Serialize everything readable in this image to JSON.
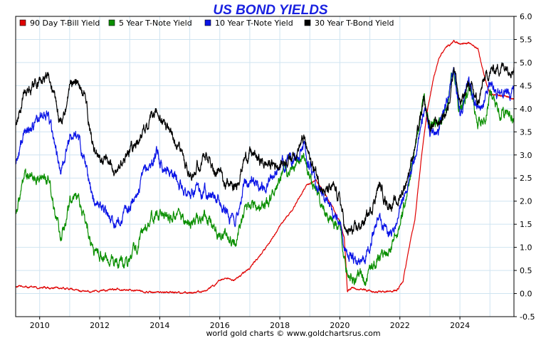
{
  "chart_data": {
    "type": "line",
    "title": "US BOND YIELDS",
    "footer": "world gold charts © www.goldchartsrus.com",
    "xlabel": "",
    "ylabel": "",
    "xlim": [
      2009.2,
      2025.8
    ],
    "ylim": [
      -0.5,
      6.0
    ],
    "x_ticks": [
      2010,
      2012,
      2014,
      2016,
      2018,
      2020,
      2022,
      2024
    ],
    "y_ticks": [
      -0.5,
      0.0,
      0.5,
      1.0,
      1.5,
      2.0,
      2.5,
      3.0,
      3.5,
      4.0,
      4.5,
      5.0,
      5.5,
      6.0
    ],
    "grid": true,
    "legend_position": "top-left",
    "series": [
      {
        "name": "90 Day T-Bill Yield",
        "color": "#e00000",
        "x": [
          2009.2,
          2009.5,
          2010.0,
          2010.5,
          2011.0,
          2011.5,
          2012.0,
          2012.5,
          2013.0,
          2013.5,
          2014.0,
          2014.5,
          2015.0,
          2015.5,
          2015.9,
          2016.0,
          2016.5,
          2017.0,
          2017.5,
          2018.0,
          2018.5,
          2018.9,
          2019.2,
          2019.5,
          2019.8,
          2020.0,
          2020.15,
          2020.25,
          2020.4,
          2020.8,
          2021.0,
          2021.5,
          2021.9,
          2022.1,
          2022.3,
          2022.5,
          2022.7,
          2022.9,
          2023.1,
          2023.3,
          2023.5,
          2023.8,
          2024.0,
          2024.3,
          2024.6,
          2024.8,
          2025.0,
          2025.3,
          2025.6,
          2025.8
        ],
        "values": [
          0.15,
          0.15,
          0.12,
          0.12,
          0.1,
          0.04,
          0.06,
          0.09,
          0.08,
          0.04,
          0.03,
          0.03,
          0.02,
          0.05,
          0.22,
          0.3,
          0.3,
          0.55,
          0.95,
          1.45,
          1.9,
          2.35,
          2.45,
          2.2,
          1.8,
          1.55,
          1.2,
          0.05,
          0.12,
          0.09,
          0.05,
          0.05,
          0.06,
          0.25,
          0.95,
          1.6,
          2.85,
          3.9,
          4.6,
          5.1,
          5.3,
          5.45,
          5.4,
          5.45,
          5.3,
          4.75,
          4.3,
          4.3,
          4.25,
          4.2
        ]
      },
      {
        "name": "5 Year T-Note Yield",
        "color": "#0a8f00",
        "x": [
          2009.2,
          2009.5,
          2010.0,
          2010.3,
          2010.7,
          2011.0,
          2011.2,
          2011.5,
          2011.8,
          2012.0,
          2012.5,
          2013.0,
          2013.5,
          2013.8,
          2014.0,
          2014.5,
          2015.0,
          2015.5,
          2016.0,
          2016.5,
          2016.8,
          2017.0,
          2017.5,
          2018.0,
          2018.5,
          2018.8,
          2019.0,
          2019.5,
          2019.8,
          2020.0,
          2020.2,
          2020.5,
          2020.8,
          2021.0,
          2021.3,
          2021.6,
          2021.9,
          2022.2,
          2022.5,
          2022.8,
          2023.0,
          2023.3,
          2023.6,
          2023.8,
          2024.0,
          2024.3,
          2024.6,
          2024.8,
          2025.0,
          2025.3,
          2025.6,
          2025.8
        ],
        "values": [
          1.8,
          2.5,
          2.5,
          2.55,
          1.2,
          2.0,
          2.2,
          1.6,
          0.95,
          0.85,
          0.65,
          0.75,
          1.4,
          1.65,
          1.7,
          1.65,
          1.55,
          1.65,
          1.35,
          1.05,
          1.75,
          1.95,
          1.85,
          2.45,
          2.75,
          2.95,
          2.55,
          1.75,
          1.6,
          1.4,
          0.5,
          0.3,
          0.35,
          0.45,
          0.8,
          0.8,
          1.25,
          2.0,
          3.2,
          4.2,
          3.6,
          3.8,
          4.1,
          4.85,
          3.9,
          4.45,
          3.7,
          3.8,
          4.3,
          3.95,
          3.9,
          3.8
        ]
      },
      {
        "name": "10 Year T-Note Yield",
        "color": "#0a14e6",
        "x": [
          2009.2,
          2009.5,
          2010.0,
          2010.3,
          2010.7,
          2011.0,
          2011.2,
          2011.5,
          2011.8,
          2012.0,
          2012.5,
          2013.0,
          2013.5,
          2013.9,
          2014.0,
          2014.5,
          2015.0,
          2015.5,
          2016.0,
          2016.5,
          2016.8,
          2017.0,
          2017.5,
          2018.0,
          2018.5,
          2018.8,
          2019.0,
          2019.5,
          2019.8,
          2020.0,
          2020.2,
          2020.5,
          2020.8,
          2021.0,
          2021.3,
          2021.6,
          2021.9,
          2022.2,
          2022.5,
          2022.8,
          2023.0,
          2023.3,
          2023.6,
          2023.8,
          2024.0,
          2024.3,
          2024.6,
          2024.8,
          2025.0,
          2025.3,
          2025.6,
          2025.8
        ],
        "values": [
          2.8,
          3.5,
          3.8,
          3.9,
          2.6,
          3.35,
          3.5,
          2.9,
          2.0,
          1.95,
          1.5,
          1.85,
          2.6,
          3.0,
          2.85,
          2.55,
          2.1,
          2.3,
          1.95,
          1.5,
          2.35,
          2.45,
          2.3,
          2.75,
          2.9,
          3.2,
          2.7,
          2.0,
          1.75,
          1.55,
          0.9,
          0.65,
          0.85,
          1.1,
          1.7,
          1.3,
          1.55,
          2.3,
          3.0,
          4.0,
          3.5,
          3.6,
          4.2,
          4.9,
          3.9,
          4.6,
          4.0,
          4.2,
          4.6,
          4.3,
          4.4,
          4.25
        ]
      },
      {
        "name": "30 Year T-Bond Yield",
        "color": "#000000",
        "x": [
          2009.2,
          2009.5,
          2010.0,
          2010.3,
          2010.7,
          2011.0,
          2011.2,
          2011.5,
          2011.8,
          2012.0,
          2012.5,
          2013.0,
          2013.5,
          2013.9,
          2014.0,
          2014.5,
          2015.0,
          2015.5,
          2016.0,
          2016.5,
          2016.8,
          2017.0,
          2017.5,
          2018.0,
          2018.5,
          2018.8,
          2019.0,
          2019.5,
          2019.8,
          2020.0,
          2020.2,
          2020.5,
          2020.8,
          2021.0,
          2021.3,
          2021.6,
          2021.9,
          2022.2,
          2022.5,
          2022.8,
          2023.0,
          2023.3,
          2023.6,
          2023.8,
          2024.0,
          2024.3,
          2024.6,
          2024.8,
          2025.0,
          2025.3,
          2025.6,
          2025.8
        ],
        "values": [
          3.6,
          4.4,
          4.6,
          4.75,
          3.65,
          4.5,
          4.6,
          4.3,
          3.1,
          3.0,
          2.6,
          3.1,
          3.55,
          3.9,
          3.75,
          3.4,
          2.6,
          2.95,
          2.6,
          2.25,
          2.9,
          3.05,
          2.8,
          2.8,
          3.05,
          3.35,
          2.9,
          2.2,
          2.25,
          2.05,
          1.3,
          1.35,
          1.55,
          1.75,
          2.35,
          1.95,
          1.95,
          2.4,
          3.2,
          4.1,
          3.6,
          3.7,
          4.0,
          5.0,
          4.05,
          4.55,
          4.1,
          4.6,
          4.8,
          4.9,
          4.95,
          4.9
        ]
      }
    ]
  }
}
